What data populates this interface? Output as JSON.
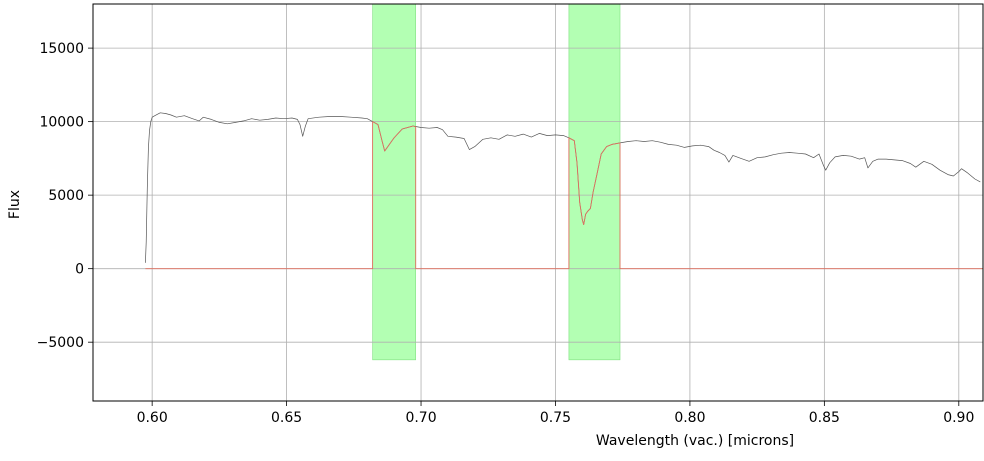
{
  "chart_data": {
    "type": "line",
    "title": "",
    "xlabel": "Wavelength (vac.) [microns]",
    "ylabel": "Flux",
    "xlim": [
      0.578,
      0.909
    ],
    "ylim": [
      -9000,
      18000
    ],
    "grid": true,
    "x_ticks": [
      0.6,
      0.65,
      0.7,
      0.75,
      0.8,
      0.85,
      0.9
    ],
    "x_tick_labels": [
      "0.60",
      "0.65",
      "0.70",
      "0.75",
      "0.80",
      "0.85",
      "0.90"
    ],
    "y_ticks": [
      -5000,
      0,
      5000,
      10000,
      15000
    ],
    "y_tick_labels": [
      "−5000",
      "0",
      "5000",
      "10000",
      "15000"
    ],
    "shaded_regions": [
      {
        "x_start": 0.682,
        "x_end": 0.698,
        "y_start": -6200,
        "y_end": 18000,
        "color": "#b3ffb3"
      },
      {
        "x_start": 0.755,
        "x_end": 0.774,
        "y_start": -6200,
        "y_end": 18000,
        "color": "#b3ffb3"
      }
    ],
    "colors": {
      "spectrum": "#555555",
      "model": "#e07060",
      "grid": "#b0b0b0",
      "shade": "#b3ffb3",
      "shade_edge": "#7fe07f"
    },
    "series": [
      {
        "role": "spectrum",
        "color": "#555555",
        "points": [
          [
            0.5975,
            400
          ],
          [
            0.5978,
            1800
          ],
          [
            0.5982,
            5500
          ],
          [
            0.5986,
            8200
          ],
          [
            0.599,
            9400
          ],
          [
            0.5995,
            10000
          ],
          [
            0.6,
            10300
          ],
          [
            0.601,
            10400
          ],
          [
            0.603,
            10600
          ],
          [
            0.605,
            10550
          ],
          [
            0.607,
            10450
          ],
          [
            0.609,
            10300
          ],
          [
            0.612,
            10400
          ],
          [
            0.615,
            10200
          ],
          [
            0.6175,
            10050
          ],
          [
            0.619,
            10300
          ],
          [
            0.622,
            10150
          ],
          [
            0.625,
            9950
          ],
          [
            0.628,
            9850
          ],
          [
            0.631,
            9950
          ],
          [
            0.634,
            10050
          ],
          [
            0.637,
            10200
          ],
          [
            0.64,
            10100
          ],
          [
            0.643,
            10150
          ],
          [
            0.646,
            10250
          ],
          [
            0.649,
            10200
          ],
          [
            0.652,
            10250
          ],
          [
            0.654,
            10150
          ],
          [
            0.655,
            9800
          ],
          [
            0.656,
            9000
          ],
          [
            0.657,
            9700
          ],
          [
            0.658,
            10200
          ],
          [
            0.662,
            10300
          ],
          [
            0.666,
            10350
          ],
          [
            0.67,
            10350
          ],
          [
            0.674,
            10300
          ],
          [
            0.678,
            10250
          ],
          [
            0.68,
            10200
          ],
          [
            0.682,
            10000
          ],
          [
            0.684,
            9800
          ],
          [
            0.6855,
            8700
          ],
          [
            0.6865,
            8000
          ],
          [
            0.688,
            8400
          ],
          [
            0.69,
            8900
          ],
          [
            0.693,
            9500
          ],
          [
            0.697,
            9700
          ],
          [
            0.7,
            9600
          ],
          [
            0.703,
            9550
          ],
          [
            0.706,
            9600
          ],
          [
            0.708,
            9450
          ],
          [
            0.71,
            9000
          ],
          [
            0.713,
            8950
          ],
          [
            0.716,
            8850
          ],
          [
            0.718,
            8100
          ],
          [
            0.72,
            8300
          ],
          [
            0.723,
            8800
          ],
          [
            0.726,
            8900
          ],
          [
            0.729,
            8800
          ],
          [
            0.732,
            9100
          ],
          [
            0.735,
            9000
          ],
          [
            0.738,
            9150
          ],
          [
            0.741,
            8950
          ],
          [
            0.744,
            9200
          ],
          [
            0.747,
            9050
          ],
          [
            0.75,
            9100
          ],
          [
            0.753,
            9050
          ],
          [
            0.755,
            8900
          ],
          [
            0.757,
            8700
          ],
          [
            0.758,
            7200
          ],
          [
            0.759,
            4500
          ],
          [
            0.76,
            3300
          ],
          [
            0.7605,
            3000
          ],
          [
            0.7612,
            3700
          ],
          [
            0.762,
            3900
          ],
          [
            0.763,
            4100
          ],
          [
            0.764,
            5200
          ],
          [
            0.7655,
            6500
          ],
          [
            0.767,
            7800
          ],
          [
            0.769,
            8300
          ],
          [
            0.771,
            8450
          ],
          [
            0.774,
            8550
          ],
          [
            0.777,
            8650
          ],
          [
            0.78,
            8700
          ],
          [
            0.783,
            8650
          ],
          [
            0.786,
            8700
          ],
          [
            0.789,
            8600
          ],
          [
            0.792,
            8450
          ],
          [
            0.795,
            8400
          ],
          [
            0.798,
            8250
          ],
          [
            0.801,
            8350
          ],
          [
            0.804,
            8400
          ],
          [
            0.807,
            8300
          ],
          [
            0.809,
            8050
          ],
          [
            0.811,
            7900
          ],
          [
            0.813,
            7700
          ],
          [
            0.8145,
            7250
          ],
          [
            0.816,
            7700
          ],
          [
            0.819,
            7500
          ],
          [
            0.822,
            7300
          ],
          [
            0.825,
            7550
          ],
          [
            0.828,
            7600
          ],
          [
            0.831,
            7750
          ],
          [
            0.834,
            7850
          ],
          [
            0.837,
            7900
          ],
          [
            0.84,
            7850
          ],
          [
            0.843,
            7800
          ],
          [
            0.846,
            7550
          ],
          [
            0.848,
            7800
          ],
          [
            0.8497,
            7000
          ],
          [
            0.8505,
            6700
          ],
          [
            0.852,
            7200
          ],
          [
            0.854,
            7600
          ],
          [
            0.857,
            7700
          ],
          [
            0.86,
            7650
          ],
          [
            0.863,
            7450
          ],
          [
            0.865,
            7550
          ],
          [
            0.8662,
            6850
          ],
          [
            0.868,
            7300
          ],
          [
            0.87,
            7450
          ],
          [
            0.873,
            7450
          ],
          [
            0.876,
            7400
          ],
          [
            0.879,
            7350
          ],
          [
            0.882,
            7150
          ],
          [
            0.884,
            6900
          ],
          [
            0.887,
            7300
          ],
          [
            0.89,
            7100
          ],
          [
            0.893,
            6700
          ],
          [
            0.896,
            6400
          ],
          [
            0.898,
            6300
          ],
          [
            0.9,
            6600
          ],
          [
            0.901,
            6800
          ],
          [
            0.903,
            6550
          ],
          [
            0.906,
            6100
          ],
          [
            0.908,
            5900
          ]
        ]
      },
      {
        "role": "model",
        "color": "#e07060",
        "points": [
          [
            0.5975,
            0
          ],
          [
            0.682,
            0
          ],
          [
            0.682,
            10000
          ],
          [
            0.684,
            9800
          ],
          [
            0.6855,
            8700
          ],
          [
            0.6865,
            8000
          ],
          [
            0.688,
            8400
          ],
          [
            0.69,
            8900
          ],
          [
            0.693,
            9500
          ],
          [
            0.697,
            9700
          ],
          [
            0.698,
            9650
          ],
          [
            0.698,
            0
          ],
          [
            0.755,
            0
          ],
          [
            0.755,
            8900
          ],
          [
            0.757,
            8700
          ],
          [
            0.758,
            7200
          ],
          [
            0.759,
            4500
          ],
          [
            0.76,
            3300
          ],
          [
            0.7605,
            3000
          ],
          [
            0.7612,
            3700
          ],
          [
            0.762,
            3900
          ],
          [
            0.763,
            4100
          ],
          [
            0.764,
            5200
          ],
          [
            0.7655,
            6500
          ],
          [
            0.767,
            7800
          ],
          [
            0.769,
            8300
          ],
          [
            0.771,
            8450
          ],
          [
            0.774,
            8550
          ],
          [
            0.774,
            0
          ],
          [
            0.909,
            0
          ]
        ]
      }
    ]
  }
}
